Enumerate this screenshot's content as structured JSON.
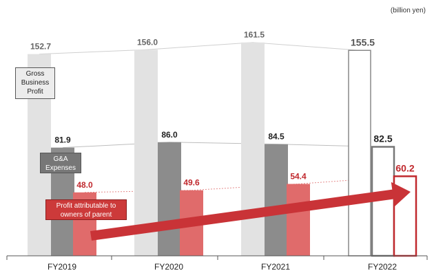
{
  "unit_label": "(billion yen)",
  "colors": {
    "gross": "#e2e2e2",
    "ga": "#8c8c8c",
    "profit": "#e06b6b",
    "profit_text": "#c0282d",
    "arrow": "#c93337"
  },
  "labels": {
    "gross": "Gross Business Profit",
    "ga": "G&A Expenses",
    "profit": "Profit attributable to owners of parent"
  },
  "chart_data": {
    "type": "bar",
    "categories": [
      "FY2019",
      "FY2020",
      "FY2021",
      "FY2022"
    ],
    "series": [
      {
        "name": "Gross Business Profit",
        "values": [
          152.7,
          156.0,
          161.5,
          155.5
        ]
      },
      {
        "name": "G&A Expenses",
        "values": [
          81.9,
          86.0,
          84.5,
          82.5
        ]
      },
      {
        "name": "Profit attributable to owners of parent",
        "values": [
          48.0,
          49.6,
          54.4,
          60.2
        ]
      }
    ],
    "value_labels": [
      [
        "152.7",
        "156.0",
        "161.5",
        "155.5"
      ],
      [
        "81.9",
        "86.0",
        "84.5",
        "82.5"
      ],
      [
        "48.0",
        "49.6",
        "54.4",
        "60.2"
      ]
    ],
    "forecast_category": "FY2022",
    "ylim": [
      0,
      165
    ],
    "grid": false
  }
}
